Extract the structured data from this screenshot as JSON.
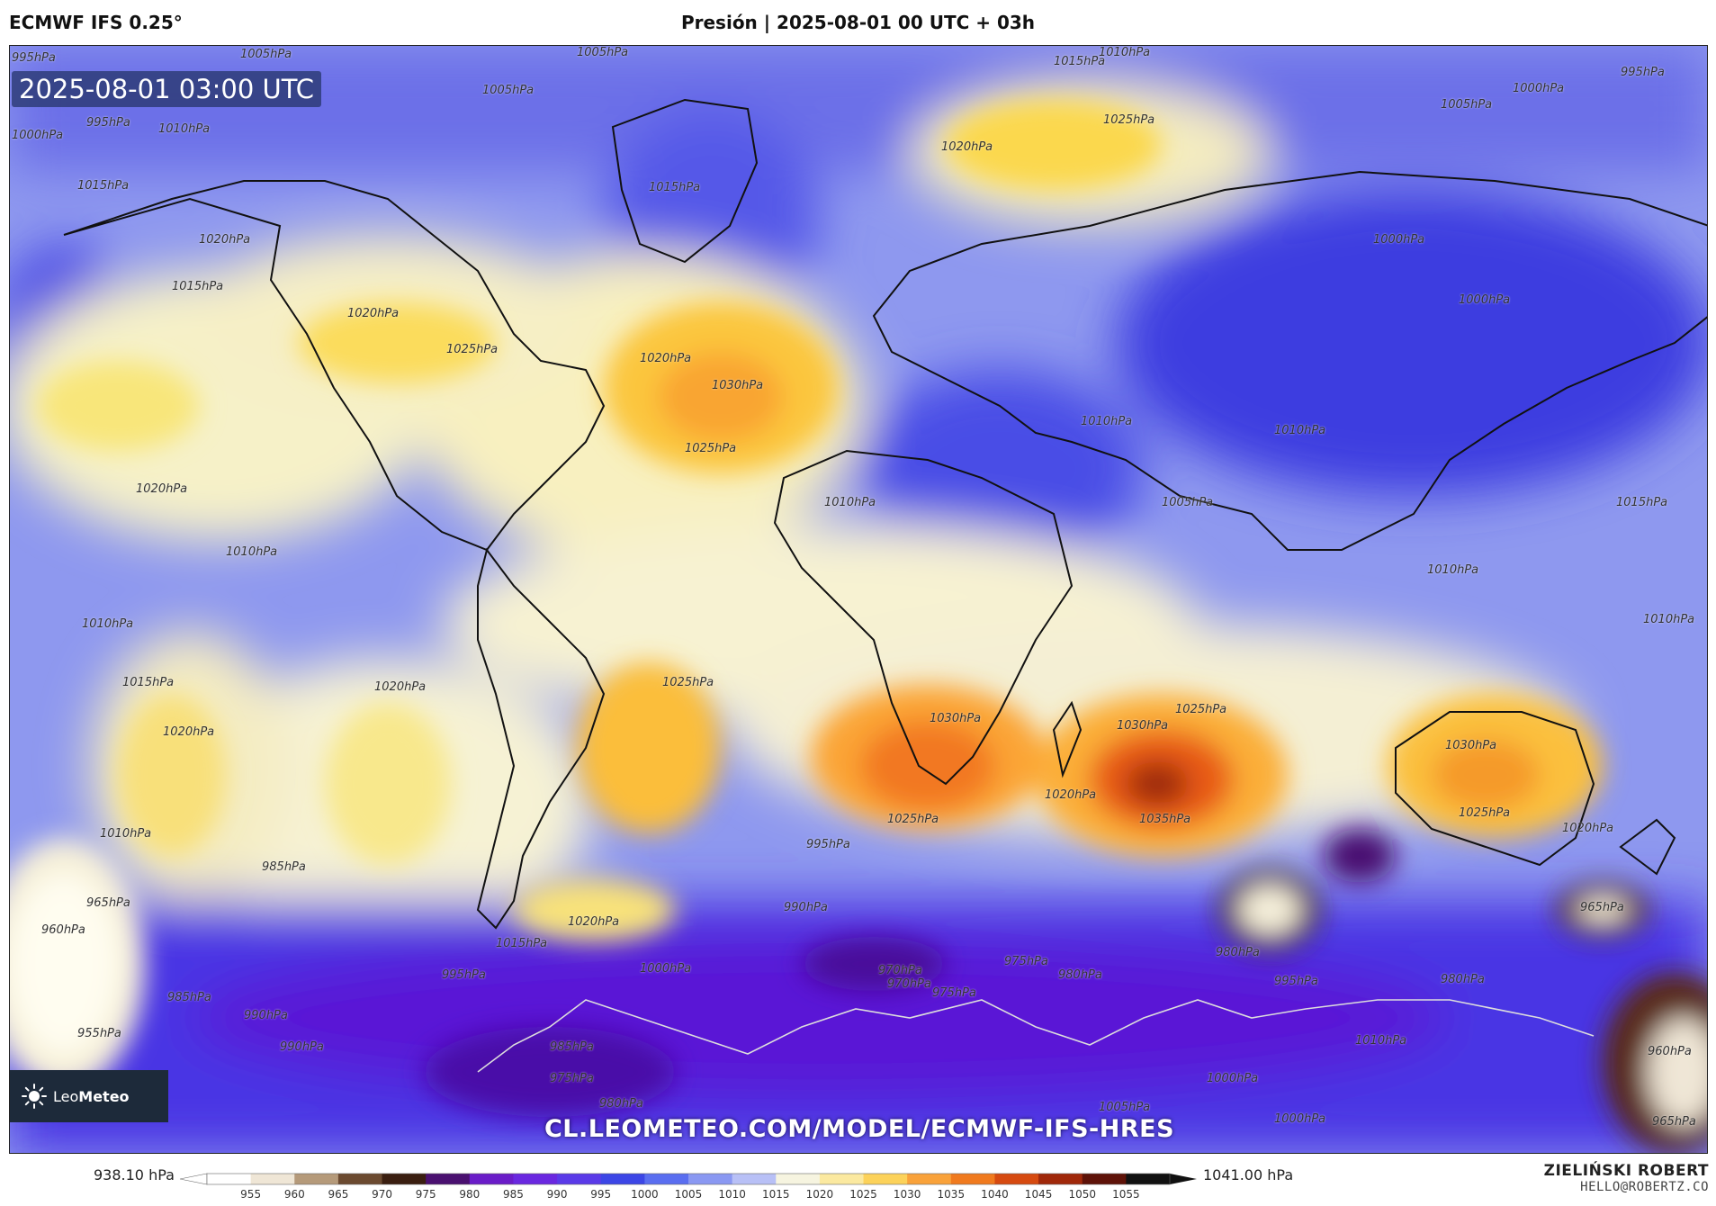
{
  "header": {
    "model": "ECMWF IFS 0.25°",
    "title": "Presión | 2025-08-01 00 UTC + 03h"
  },
  "map": {
    "valid_time": "2025-08-01 03:00 UTC",
    "url": "CL.LEOMETEO.COM/MODEL/ECMWF-IFS-HRES",
    "logo": {
      "name_light": "Leo",
      "name_bold": "Meteo"
    },
    "isobar_labels": [
      "995hPa",
      "1005hPa",
      "1005hPa",
      "1015hPa",
      "1010hPa",
      "995hPa",
      "1005hPa",
      "1000hPa",
      "995hPa",
      "1010hPa",
      "1000hPa",
      "1005hPa",
      "1025hPa",
      "1020hPa",
      "1015hPa",
      "1015hPa",
      "1020hPa",
      "1000hPa",
      "1015hPa",
      "1020hPa",
      "1025hPa",
      "1020hPa",
      "1030hPa",
      "1025hPa",
      "1020hPa",
      "1010hPa",
      "1010hPa",
      "1010hPa",
      "1000hPa",
      "1015hPa",
      "1010hPa",
      "1010hPa",
      "1005hPa",
      "1010hPa",
      "1015hPa",
      "1020hPa",
      "1020hPa",
      "1025hPa",
      "1010hPa",
      "1030hPa",
      "1030hPa",
      "1025hPa",
      "1020hPa",
      "1035hPa",
      "1025hPa",
      "1030hPa",
      "1025hPa",
      "1020hPa",
      "1010hPa",
      "995hPa",
      "985hPa",
      "990hPa",
      "975hPa",
      "970hPa",
      "965hPa",
      "960hPa",
      "990hPa",
      "995hPa",
      "985hPa",
      "1000hPa",
      "1015hPa",
      "1020hPa",
      "970hPa",
      "975hPa",
      "980hPa",
      "995hPa",
      "980hPa",
      "965hPa",
      "980hPa",
      "955hPa",
      "990hPa",
      "985hPa",
      "975hPa",
      "980hPa",
      "1000hPa",
      "1005hPa",
      "1010hPa",
      "1000hPa",
      "960hPa",
      "965hPa"
    ]
  },
  "colorbar": {
    "min_label": "938.10 hPa",
    "max_label": "1041.00 hPa",
    "ticks": [
      "955",
      "960",
      "965",
      "970",
      "975",
      "980",
      "985",
      "990",
      "995",
      "1000",
      "1005",
      "1010",
      "1015",
      "1020",
      "1025",
      "1030",
      "1035",
      "1040",
      "1045",
      "1050",
      "1055"
    ],
    "colors": [
      "#ffffff",
      "#efe6d6",
      "#b59a7a",
      "#6b4a30",
      "#3a1e10",
      "#4a1070",
      "#6a1cc8",
      "#6a28e0",
      "#5a3ae8",
      "#3c46e6",
      "#5a6ef0",
      "#8a98f2",
      "#b8c0f6",
      "#f6f4e0",
      "#fbe9a0",
      "#fcd25a",
      "#f9a23a",
      "#f07a1e",
      "#d64a10",
      "#a0280a",
      "#5e1208",
      "#111111"
    ],
    "credit_name": "ZIELIŃSKI ROBERT",
    "credit_email": "HELLO@ROBERTZ.CO"
  }
}
